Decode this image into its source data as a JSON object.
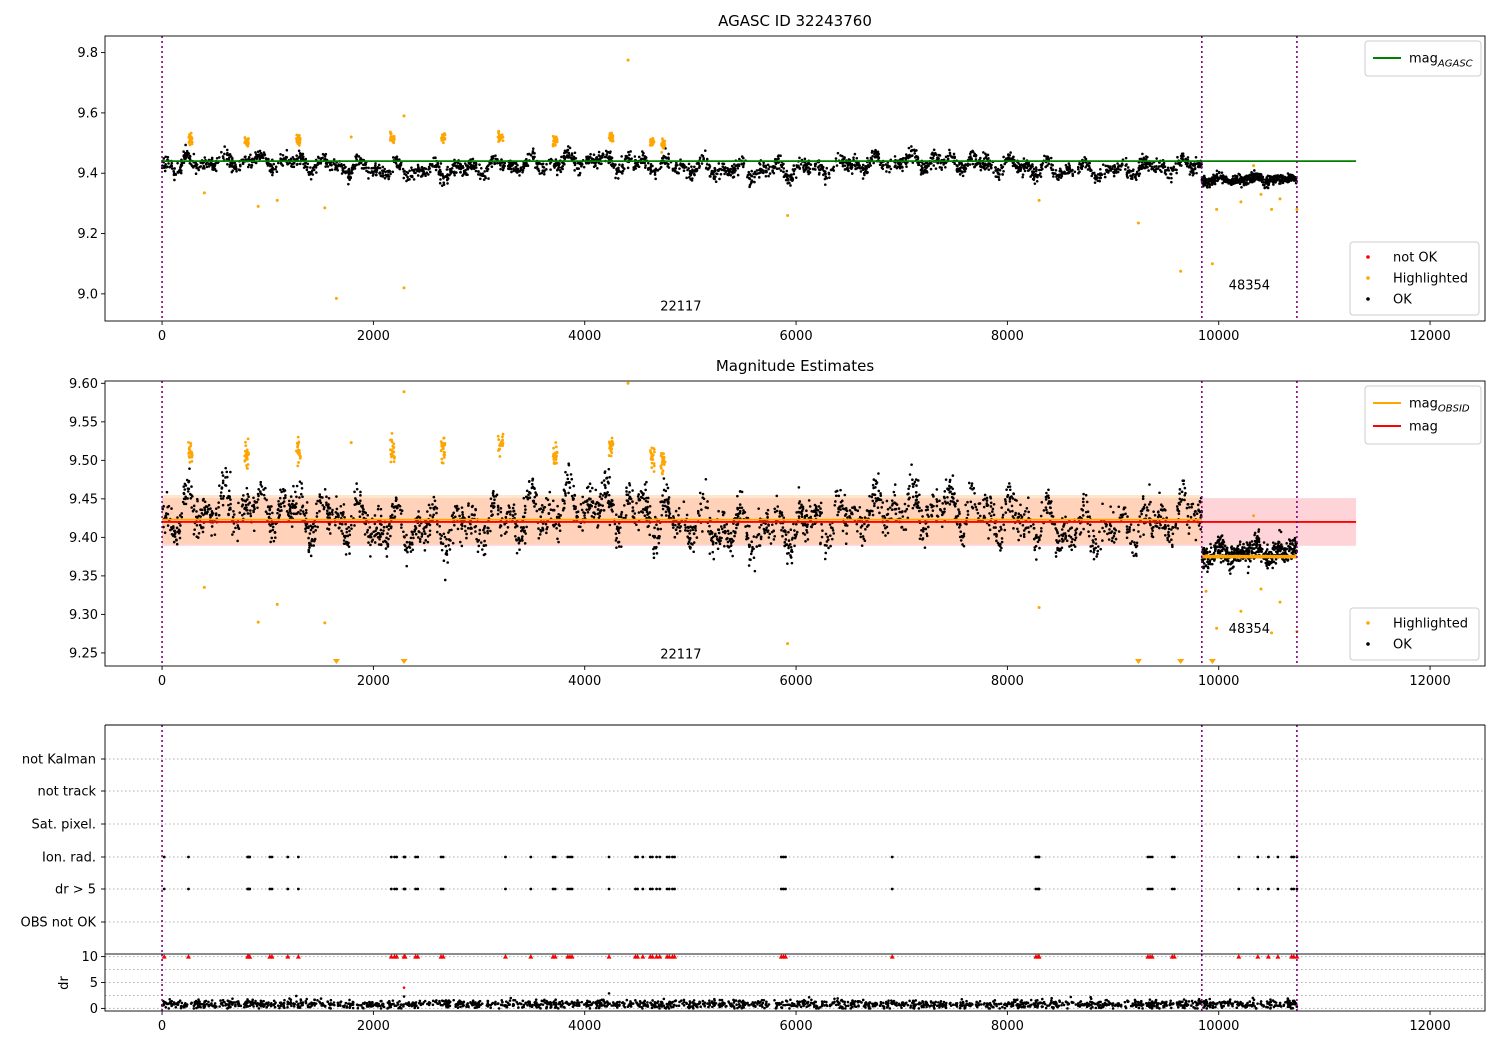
{
  "chart_data": [
    {
      "type": "scatter",
      "title": "AGASC ID 32243760",
      "xlabel": "",
      "ylabel": "",
      "xlim": [
        -540,
        12520
      ],
      "ylim": [
        8.91,
        9.855
      ],
      "xticks": [
        0,
        2000,
        4000,
        6000,
        8000,
        10000,
        12000
      ],
      "xtick_labels": [
        "0",
        "2000",
        "4000",
        "6000",
        "8000",
        "10000",
        "12000"
      ],
      "yticks": [
        9.0,
        9.2,
        9.4,
        9.6,
        9.8
      ],
      "ytick_labels": [
        "9.0",
        "9.2",
        "9.4",
        "9.6",
        "9.8"
      ],
      "grid": false,
      "legend_upper": {
        "placement": "top-right",
        "entries": [
          {
            "name": "mag",
            "subscript": "AGASC",
            "color": "#008000",
            "kind": "line"
          }
        ]
      },
      "legend_lower": {
        "placement": "bottom-right",
        "entries": [
          {
            "name": "not OK",
            "color": "#ff0000",
            "kind": "dot"
          },
          {
            "name": "Highlighted",
            "color": "#ffa500",
            "kind": "dot"
          },
          {
            "name": "OK",
            "color": "#000000",
            "kind": "dot"
          }
        ]
      },
      "lines": [
        {
          "name": "mag_AGASC",
          "y": 9.44,
          "x_range": [
            0,
            11300
          ],
          "color": "#008000"
        }
      ],
      "vlines": [
        0,
        9840,
        10740
      ],
      "vline_color": "#800080",
      "annotations": [
        {
          "text": "22117",
          "x": 4910,
          "y": 8.945
        },
        {
          "text": "48354",
          "x": 10290,
          "y": 9.015
        }
      ],
      "segments": [
        {
          "x_range": [
            0,
            9840
          ],
          "mean": 9.425,
          "amp": 0.03,
          "noise": 0.012,
          "count": 2600
        },
        {
          "x_range": [
            9840,
            10740
          ],
          "mean": 9.375,
          "amp": 0.01,
          "noise": 0.008,
          "count": 480
        }
      ],
      "highlight_clusters": [
        {
          "x": [
            250,
            290
          ],
          "y": 9.51
        },
        {
          "x": [
            780,
            820
          ],
          "y": 9.51
        },
        {
          "x": [
            1270,
            1310
          ],
          "y": 9.51
        },
        {
          "x": [
            2160,
            2200
          ],
          "y": 9.515
        },
        {
          "x": [
            2640,
            2680
          ],
          "y": 9.515
        },
        {
          "x": [
            3180,
            3230
          ],
          "y": 9.52
        },
        {
          "x": [
            3700,
            3740
          ],
          "y": 9.505
        },
        {
          "x": [
            4230,
            4270
          ],
          "y": 9.52
        },
        {
          "x": [
            4620,
            4660
          ],
          "y": 9.505
        },
        {
          "x": [
            4720,
            4760
          ],
          "y": 9.5
        }
      ],
      "highlight_outliers": [
        {
          "x": 400,
          "y": 9.335
        },
        {
          "x": 910,
          "y": 9.29
        },
        {
          "x": 1090,
          "y": 9.31
        },
        {
          "x": 1540,
          "y": 9.285
        },
        {
          "x": 1650,
          "y": 8.985
        },
        {
          "x": 1790,
          "y": 9.52
        },
        {
          "x": 2290,
          "y": 9.02
        },
        {
          "x": 2290,
          "y": 9.59
        },
        {
          "x": 4410,
          "y": 9.775
        },
        {
          "x": 5920,
          "y": 9.26
        },
        {
          "x": 8300,
          "y": 9.31
        },
        {
          "x": 9240,
          "y": 9.235
        },
        {
          "x": 9640,
          "y": 9.075
        },
        {
          "x": 9940,
          "y": 9.1
        },
        {
          "x": 9980,
          "y": 9.28
        },
        {
          "x": 10210,
          "y": 9.305
        },
        {
          "x": 10330,
          "y": 9.425
        },
        {
          "x": 10400,
          "y": 9.33
        },
        {
          "x": 10500,
          "y": 9.28
        },
        {
          "x": 10580,
          "y": 9.315
        },
        {
          "x": 10740,
          "y": 9.28
        }
      ]
    },
    {
      "type": "scatter",
      "title": "Magnitude Estimates",
      "xlabel": "",
      "ylabel": "",
      "xlim": [
        -540,
        12520
      ],
      "ylim": [
        9.233,
        9.603
      ],
      "xticks": [
        0,
        2000,
        4000,
        6000,
        8000,
        10000,
        12000
      ],
      "xtick_labels": [
        "0",
        "2000",
        "4000",
        "6000",
        "8000",
        "10000",
        "12000"
      ],
      "yticks": [
        9.25,
        9.3,
        9.35,
        9.4,
        9.45,
        9.5,
        9.55,
        9.6
      ],
      "ytick_labels": [
        "9.25",
        "9.30",
        "9.35",
        "9.40",
        "9.45",
        "9.50",
        "9.55",
        "9.60"
      ],
      "grid": false,
      "legend_upper": {
        "placement": "top-right",
        "entries": [
          {
            "name": "mag",
            "subscript": "OBSID",
            "color": "#ffa500",
            "kind": "line"
          },
          {
            "name": "mag",
            "subscript": "",
            "color": "#ff0000",
            "kind": "line"
          }
        ]
      },
      "legend_lower": {
        "placement": "bottom-right",
        "entries": [
          {
            "name": "Highlighted",
            "color": "#ffa500",
            "kind": "dot"
          },
          {
            "name": "OK",
            "color": "#000000",
            "kind": "dot"
          }
        ]
      },
      "lines": [
        {
          "name": "mag",
          "y": 9.42,
          "x_range": [
            0,
            11300
          ],
          "color": "#ff0000"
        },
        {
          "name": "mag_OBSID",
          "y": 9.423,
          "x_range": [
            0,
            9840
          ],
          "color": "#ffa500"
        },
        {
          "name": "mag_OBSID",
          "y": 9.375,
          "x_range": [
            9840,
            10740
          ],
          "color": "#ffa500"
        }
      ],
      "bands": [
        {
          "y_range": [
            9.389,
            9.451
          ],
          "x_range": [
            0,
            11300
          ],
          "color": "#ffb0b8"
        },
        {
          "y_range": [
            9.391,
            9.455
          ],
          "x_range": [
            0,
            9840
          ],
          "color": "#ffd0a0"
        },
        {
          "y_range": [
            9.372,
            9.379
          ],
          "x_range": [
            9840,
            10740
          ],
          "color": "#ffd0a0"
        }
      ],
      "vlines": [
        0,
        9840,
        10740
      ],
      "vline_color": "#800080",
      "annotations": [
        {
          "text": "22117",
          "x": 4910,
          "y": 9.243
        },
        {
          "text": "48354",
          "x": 10290,
          "y": 9.276
        }
      ],
      "segments": [
        {
          "x_range": [
            0,
            9840
          ],
          "mean": 9.425,
          "amp": 0.03,
          "noise": 0.012,
          "count": 2600
        },
        {
          "x_range": [
            9840,
            10740
          ],
          "mean": 9.375,
          "amp": 0.01,
          "noise": 0.008,
          "count": 480
        }
      ],
      "highlight_clusters": [
        {
          "x": [
            250,
            290
          ],
          "y": 9.51
        },
        {
          "x": [
            780,
            820
          ],
          "y": 9.51
        },
        {
          "x": [
            1270,
            1310
          ],
          "y": 9.51
        },
        {
          "x": [
            2160,
            2200
          ],
          "y": 9.515
        },
        {
          "x": [
            2640,
            2680
          ],
          "y": 9.515
        },
        {
          "x": [
            3180,
            3230
          ],
          "y": 9.52
        },
        {
          "x": [
            3700,
            3740
          ],
          "y": 9.505
        },
        {
          "x": [
            4230,
            4270
          ],
          "y": 9.52
        },
        {
          "x": [
            4620,
            4660
          ],
          "y": 9.505
        },
        {
          "x": [
            4720,
            4760
          ],
          "y": 9.5
        }
      ],
      "highlight_outliers": [
        {
          "x": 400,
          "y": 9.335
        },
        {
          "x": 910,
          "y": 9.29
        },
        {
          "x": 1090,
          "y": 9.313
        },
        {
          "x": 1540,
          "y": 9.289
        },
        {
          "x": 1790,
          "y": 9.523
        },
        {
          "x": 2290,
          "y": 9.589
        },
        {
          "x": 4410,
          "y": 9.6
        },
        {
          "x": 5920,
          "y": 9.262
        },
        {
          "x": 8300,
          "y": 9.309
        },
        {
          "x": 9880,
          "y": 9.33
        },
        {
          "x": 9980,
          "y": 9.282
        },
        {
          "x": 10210,
          "y": 9.304
        },
        {
          "x": 10330,
          "y": 9.428
        },
        {
          "x": 10400,
          "y": 9.333
        },
        {
          "x": 10500,
          "y": 9.276
        },
        {
          "x": 10580,
          "y": 9.316
        },
        {
          "x": 10740,
          "y": 9.278
        }
      ],
      "clipped_markers": [
        1650,
        2290,
        9240,
        9640,
        9940
      ]
    },
    {
      "type": "scatter",
      "title": "",
      "xlabel": "",
      "ylabel": "",
      "xlim": [
        -540,
        12520
      ],
      "categories": [
        "OBS not OK",
        "dr > 5",
        "Ion. rad.",
        "Sat. pixel.",
        "not track",
        "not Kalman"
      ],
      "grid": true,
      "flag_rows": {
        "Ion. rad.": [
          20,
          250,
          810,
          820,
          830,
          1020,
          1040,
          1190,
          1290,
          2170,
          2200,
          2220,
          2290,
          2300,
          2400,
          2420,
          2640,
          2660,
          3250,
          3490,
          3700,
          3720,
          3840,
          3860,
          3880,
          4230,
          4480,
          4500,
          4550,
          4620,
          4640,
          4680,
          4710,
          4780,
          4800,
          4830,
          4850,
          5860,
          5880,
          5900,
          6910,
          8270,
          8290,
          8300,
          9330,
          9350,
          9370,
          9560,
          9580,
          10190,
          10370,
          10470,
          10560,
          10690,
          10710,
          10740
        ],
        "dr > 5": [
          20,
          250,
          810,
          820,
          830,
          1020,
          1040,
          1190,
          1290,
          2170,
          2200,
          2220,
          2290,
          2300,
          2400,
          2420,
          2640,
          2660,
          3250,
          3490,
          3700,
          3720,
          3840,
          3860,
          3880,
          4230,
          4480,
          4500,
          4550,
          4620,
          4640,
          4680,
          4710,
          4780,
          4800,
          4830,
          4850,
          5860,
          5880,
          5900,
          6910,
          8270,
          8290,
          8300,
          9330,
          9350,
          9370,
          9560,
          9580,
          10190,
          10370,
          10470,
          10560,
          10690,
          10710,
          10740
        ]
      },
      "vlines": [
        0,
        9840,
        10740
      ],
      "vline_color": "#800080"
    },
    {
      "type": "scatter",
      "title": "",
      "xlabel": "",
      "ylabel": "dr",
      "xlim": [
        -540,
        12520
      ],
      "ylim": [
        -0.5,
        10.5
      ],
      "xticks": [
        0,
        2000,
        4000,
        6000,
        8000,
        10000,
        12000
      ],
      "xtick_labels": [
        "0",
        "2000",
        "4000",
        "6000",
        "8000",
        "10000",
        "12000"
      ],
      "yticks": [
        0,
        5,
        10
      ],
      "ytick_labels": [
        "0",
        "5",
        "10"
      ],
      "grid": true,
      "base": {
        "x_range": [
          0,
          10740
        ],
        "mean": 0.8,
        "spread": 0.7,
        "count": 1800
      },
      "base_spikes": [
        {
          "x": 1270,
          "y": 2.4
        },
        {
          "x": 2290,
          "y": 4.0
        },
        {
          "x": 2290,
          "y": 2.3
        },
        {
          "x": 4230,
          "y": 2.9
        },
        {
          "x": 3300,
          "y": 2.0
        },
        {
          "x": 8600,
          "y": 2.2
        }
      ],
      "capped_markers": {
        "y": 10,
        "color": "#ff0000",
        "x": [
          20,
          250,
          810,
          820,
          830,
          1020,
          1040,
          1190,
          1290,
          2170,
          2200,
          2220,
          2290,
          2300,
          2400,
          2420,
          2640,
          2660,
          3250,
          3490,
          3700,
          3720,
          3840,
          3860,
          3880,
          4230,
          4480,
          4500,
          4550,
          4620,
          4640,
          4680,
          4710,
          4780,
          4800,
          4830,
          4850,
          5860,
          5880,
          5900,
          6910,
          8270,
          8290,
          8300,
          9330,
          9350,
          9370,
          9560,
          9580,
          10190,
          10370,
          10470,
          10560,
          10690,
          10710,
          10740
        ]
      },
      "vlines": [
        0,
        9840,
        10740
      ],
      "vline_color": "#800080"
    }
  ]
}
